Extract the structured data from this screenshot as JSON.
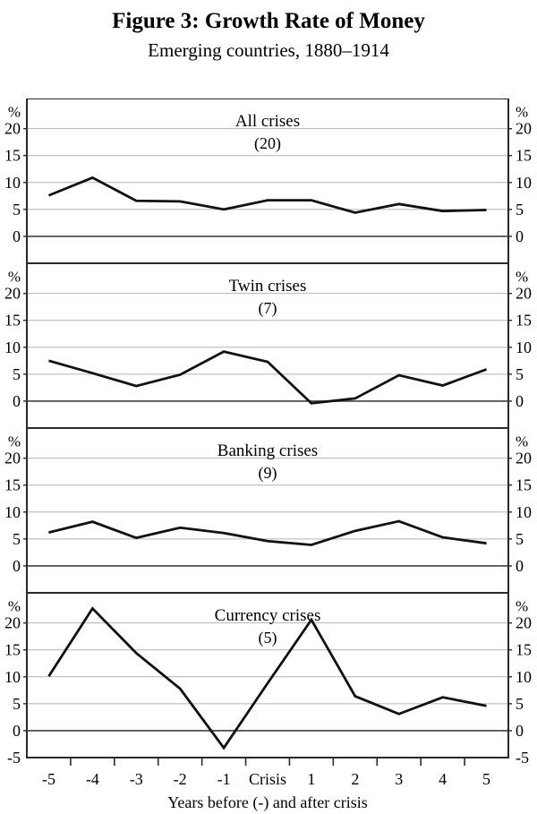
{
  "header": {
    "title": "Figure 3: Growth Rate of Money",
    "subtitle": "Emerging countries, 1880–1914"
  },
  "chart_data": {
    "type": "line",
    "x_categories": [
      "-5",
      "-4",
      "-3",
      "-2",
      "-1",
      "Crisis",
      "1",
      "2",
      "3",
      "4",
      "5"
    ],
    "xlabel": "Years before (-) and after crisis",
    "y_unit_label": "%",
    "y_tick_values": [
      0,
      5,
      10,
      15,
      20
    ],
    "ylim": [
      -5,
      25.6
    ],
    "grid": true,
    "legend": "none",
    "colors": {
      "line": "#111111",
      "grid": "#b4b4b4",
      "zero_line": "#5a5a5a",
      "border": "#2a2a2a",
      "text": "#000000"
    },
    "panels": [
      {
        "title": "All crises",
        "count_label": "(20)",
        "values": [
          7.6,
          10.9,
          6.6,
          6.5,
          5.0,
          6.7,
          6.7,
          4.4,
          6.0,
          4.7,
          4.9
        ],
        "extra_bottom_tick_label": null
      },
      {
        "title": "Twin crises",
        "count_label": "(7)",
        "values": [
          7.5,
          5.2,
          2.8,
          4.9,
          9.2,
          7.3,
          -0.4,
          0.5,
          4.8,
          2.9,
          5.9
        ],
        "extra_bottom_tick_label": null
      },
      {
        "title": "Banking crises",
        "count_label": "(9)",
        "values": [
          6.2,
          8.2,
          5.2,
          7.1,
          6.1,
          4.6,
          3.9,
          6.5,
          8.3,
          5.3,
          4.2
        ],
        "extra_bottom_tick_label": null
      },
      {
        "title": "Currency crises",
        "count_label": "(5)",
        "values": [
          10.1,
          22.7,
          14.4,
          7.8,
          -3.2,
          8.8,
          20.6,
          6.4,
          3.1,
          6.2,
          4.6
        ],
        "extra_bottom_tick_label": "-5"
      }
    ]
  }
}
